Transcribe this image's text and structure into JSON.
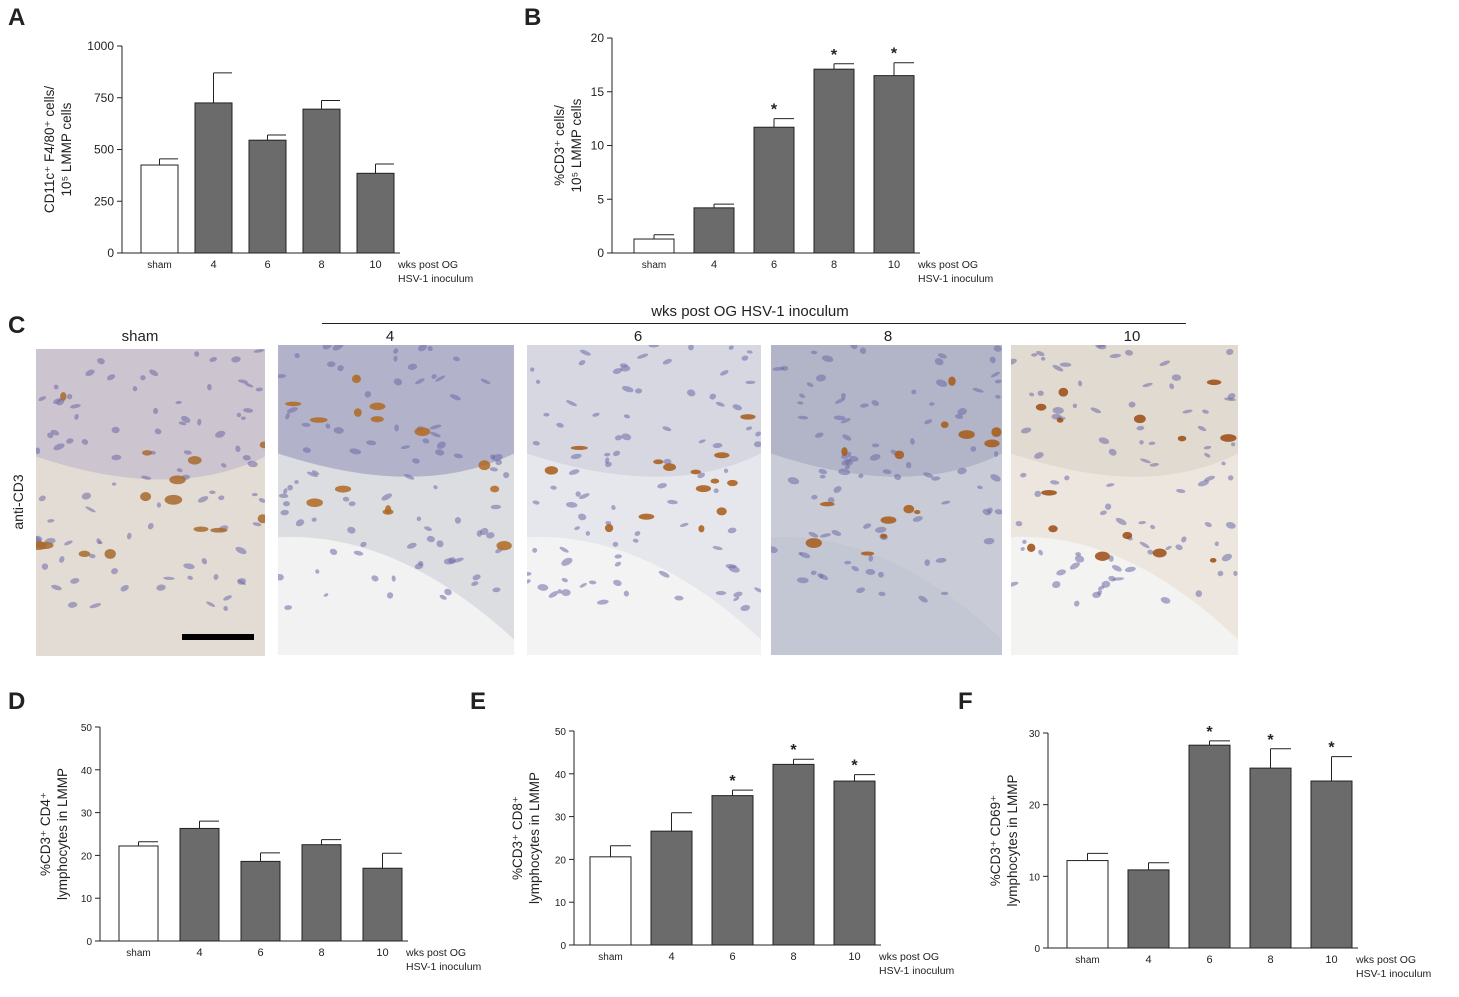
{
  "panels": {
    "A": "A",
    "B": "B",
    "C": "C",
    "D": "D",
    "E": "E",
    "F": "F"
  },
  "chart_data": [
    {
      "id": "A",
      "type": "bar",
      "categories": [
        "sham",
        "4",
        "6",
        "8",
        "10"
      ],
      "values": [
        425,
        725,
        545,
        695,
        385
      ],
      "errors": [
        30,
        145,
        25,
        42,
        45
      ],
      "significant": [
        false,
        false,
        false,
        false,
        false
      ],
      "yticks": [
        0,
        250,
        500,
        750,
        1000
      ],
      "ylim": [
        0,
        1000
      ],
      "ylabel_lines": [
        "CD11c⁺ F4/80⁺ cells/",
        "10⁵ LMMP cells"
      ],
      "xlabel_lines": [
        "wks post OG",
        "HSV-1 inoculum"
      ],
      "colors": {
        "sham": "#ffffff",
        "infected": "#6b6b6b"
      }
    },
    {
      "id": "B",
      "type": "bar",
      "categories": [
        "sham",
        "4",
        "6",
        "8",
        "10"
      ],
      "values": [
        1.3,
        4.2,
        11.7,
        17.1,
        16.5
      ],
      "errors": [
        0.4,
        0.35,
        0.8,
        0.5,
        1.2
      ],
      "significant": [
        false,
        false,
        true,
        true,
        true
      ],
      "yticks": [
        0,
        5,
        10,
        15,
        20
      ],
      "ylim": [
        0,
        20
      ],
      "ylabel_lines": [
        "%CD3⁺ cells/",
        "10⁵ LMMP cells"
      ],
      "xlabel_lines": [
        "wks post OG",
        "HSV-1 inoculum"
      ],
      "colors": {
        "sham": "#ffffff",
        "infected": "#6b6b6b"
      }
    },
    {
      "id": "D",
      "type": "bar",
      "categories": [
        "sham",
        "4",
        "6",
        "8",
        "10"
      ],
      "values": [
        22.2,
        26.3,
        18.6,
        22.5,
        17.0
      ],
      "errors": [
        1.0,
        1.7,
        2.0,
        1.2,
        3.5
      ],
      "significant": [
        false,
        false,
        false,
        false,
        false
      ],
      "yticks": [
        0,
        10,
        20,
        30,
        40,
        50
      ],
      "ylim": [
        0,
        50
      ],
      "ylabel_lines": [
        "%CD3⁺ CD4⁺",
        "lymphocytes in LMMP"
      ],
      "xlabel_lines": [
        "wks post OG",
        "HSV-1 inoculum"
      ],
      "colors": {
        "sham": "#ffffff",
        "infected": "#6b6b6b"
      }
    },
    {
      "id": "E",
      "type": "bar",
      "categories": [
        "sham",
        "4",
        "6",
        "8",
        "10"
      ],
      "values": [
        20.6,
        26.6,
        34.9,
        42.2,
        38.3
      ],
      "errors": [
        2.6,
        4.3,
        1.3,
        1.2,
        1.5
      ],
      "significant": [
        false,
        false,
        true,
        true,
        true
      ],
      "yticks": [
        0,
        10,
        20,
        30,
        40,
        50
      ],
      "ylim": [
        0,
        50
      ],
      "ylabel_lines": [
        "%CD3⁺ CD8⁺",
        "lymphocytes in LMMP"
      ],
      "xlabel_lines": [
        "wks post OG",
        "HSV-1 inoculum"
      ],
      "colors": {
        "sham": "#ffffff",
        "infected": "#6b6b6b"
      }
    },
    {
      "id": "F",
      "type": "bar",
      "categories": [
        "sham",
        "4",
        "6",
        "8",
        "10"
      ],
      "values": [
        12.2,
        10.9,
        28.3,
        25.1,
        23.3
      ],
      "errors": [
        1.0,
        1.0,
        0.6,
        2.7,
        3.4
      ],
      "significant": [
        false,
        false,
        true,
        true,
        true
      ],
      "yticks": [
        0,
        10,
        20,
        30
      ],
      "ylim": [
        0,
        30
      ],
      "ylabel_lines": [
        "%CD3⁺ CD69⁺",
        "lymphocytes in LMMP"
      ],
      "xlabel_lines": [
        "wks post OG",
        "HSV-1 inoculum"
      ],
      "colors": {
        "sham": "#ffffff",
        "infected": "#6b6b6b"
      }
    }
  ],
  "histology": {
    "header": "wks post OG HSV-1 inoculum",
    "row_label": "anti-CD3",
    "labels": [
      "sham",
      "4",
      "6",
      "8",
      "10"
    ],
    "images": [
      {
        "name": "sham",
        "bg": "#e2dcd4",
        "upper": "#b9b0c8",
        "stain": "#a86a2e"
      },
      {
        "name": "4",
        "bg": "#dcdde0",
        "upper": "#8f8fb8",
        "stain": "#b06a22"
      },
      {
        "name": "6",
        "bg": "#e6e7ec",
        "upper": "#c9cad8",
        "stain": "#a85a18"
      },
      {
        "name": "8",
        "bg": "#c9ccd6",
        "upper": "#9da2bc",
        "stain": "#a85a18"
      },
      {
        "name": "10",
        "bg": "#ece6df",
        "upper": "#d8cfc4",
        "stain": "#9a4a10"
      }
    ]
  }
}
